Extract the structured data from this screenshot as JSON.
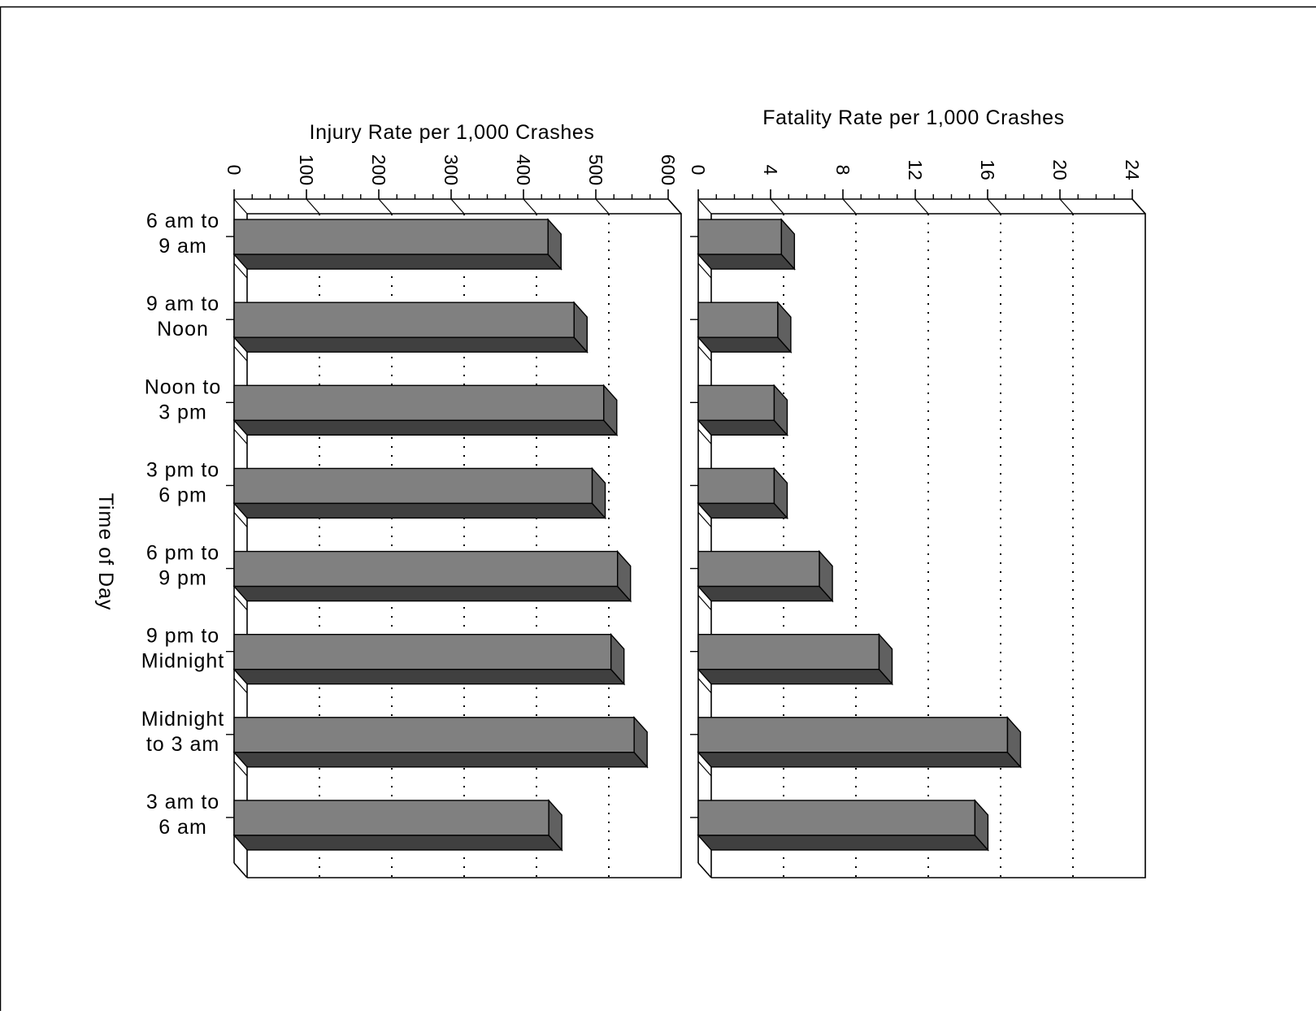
{
  "chart_data": [
    {
      "type": "bar",
      "orientation": "horizontal",
      "style": "3d",
      "title": "",
      "xlabel": "Injury Rate per 1,000 Crashes",
      "ylabel": "Time of Day",
      "categories": [
        [
          "6 am to",
          "9 am"
        ],
        [
          "9 am to",
          "Noon"
        ],
        [
          "Noon to",
          "3 pm"
        ],
        [
          "3 pm to",
          "6 pm"
        ],
        [
          "6 pm to",
          "9 pm"
        ],
        [
          "9 pm to",
          "Midnight"
        ],
        [
          "Midnight",
          "to 3 am"
        ],
        [
          "3 am to",
          "6 am"
        ]
      ],
      "values": [
        434,
        470,
        511,
        495,
        530,
        521,
        553,
        435
      ],
      "xlim": [
        0,
        600
      ],
      "xticks": [
        "0",
        "100",
        "200",
        "300",
        "400",
        "500",
        "600"
      ],
      "grid": "dotted vertical",
      "bar_color": "#808080"
    },
    {
      "type": "bar",
      "orientation": "horizontal",
      "style": "3d",
      "title": "",
      "xlabel": "Fatality Rate per 1,000 Crashes",
      "ylabel": "",
      "categories": [
        [
          "6 am to",
          "9 am"
        ],
        [
          "9 am to",
          "Noon"
        ],
        [
          "Noon to",
          "3 pm"
        ],
        [
          "3 pm to",
          "6 pm"
        ],
        [
          "6 pm to",
          "9 pm"
        ],
        [
          "9 pm to",
          "Midnight"
        ],
        [
          "Midnight",
          "to 3 am"
        ],
        [
          "3 am to",
          "6 am"
        ]
      ],
      "values": [
        4.6,
        4.4,
        4.2,
        4.2,
        6.7,
        10.0,
        17.1,
        15.3
      ],
      "xlim": [
        0,
        24
      ],
      "xticks": [
        "0",
        "4",
        "8",
        "12",
        "16",
        "20",
        "24"
      ],
      "grid": "dotted vertical",
      "bar_color": "#808080"
    }
  ]
}
